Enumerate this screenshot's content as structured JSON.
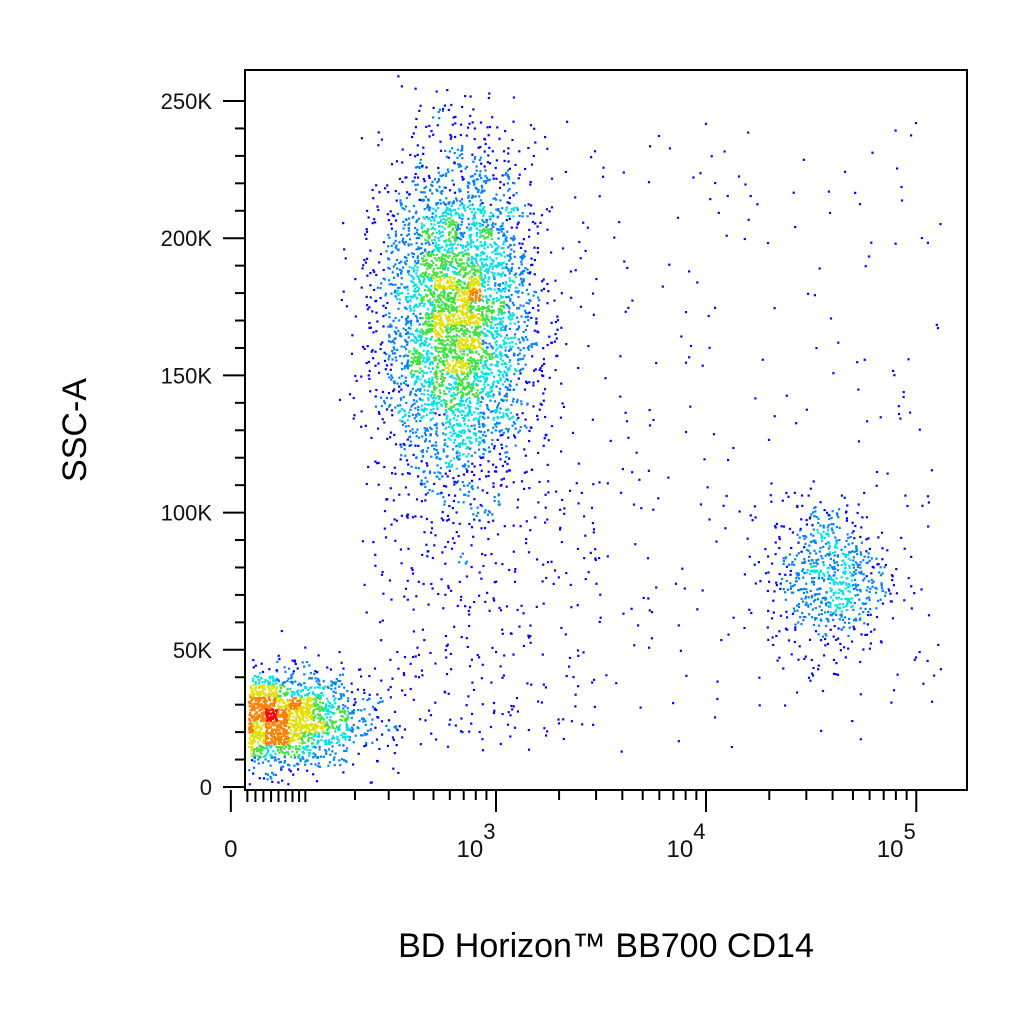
{
  "chart_data": {
    "type": "scatter",
    "subtype": "flow-cytometry-density-dot-plot",
    "xlabel": "BD Horizon™ BB700 CD14",
    "ylabel": "SSC-A",
    "x_scale": "biexponential",
    "x_ticks": [
      {
        "value": 0,
        "base": "0",
        "exp": ""
      },
      {
        "value": 1000,
        "base": "10",
        "exp": "3"
      },
      {
        "value": 10000,
        "base": "10",
        "exp": "4"
      },
      {
        "value": 100000,
        "base": "10",
        "exp": "5"
      }
    ],
    "y_ticks": [
      {
        "value": 0,
        "label": "0"
      },
      {
        "value": 50000,
        "label": "50K"
      },
      {
        "value": 100000,
        "label": "100K"
      },
      {
        "value": 150000,
        "label": "150K"
      },
      {
        "value": 200000,
        "label": "200K"
      },
      {
        "value": 250000,
        "label": "250K"
      }
    ],
    "ylim": [
      -3000,
      258000
    ],
    "grid": false,
    "legend": "none",
    "colormap": [
      "#0000ff",
      "#0080ff",
      "#00e0e0",
      "#40e040",
      "#e0e000",
      "#ff8000",
      "#ff0000"
    ],
    "populations": [
      {
        "center_x": 40,
        "center_y": 25000,
        "spread_x_decades": 0.25,
        "spread_y": 9000,
        "events": 2600
      },
      {
        "center_x": 650,
        "center_y": 170000,
        "spread_x_decades": 0.2,
        "spread_y": 30000,
        "events": 4200
      },
      {
        "center_x": 38000,
        "center_y": 77000,
        "spread_x_decades": 0.16,
        "spread_y": 14000,
        "events": 700
      }
    ]
  }
}
